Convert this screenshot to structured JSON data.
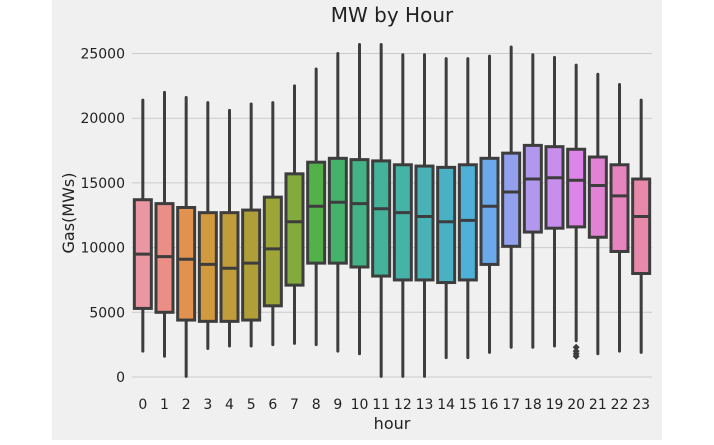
{
  "chart_data": {
    "type": "boxplot",
    "title": "MW by Hour",
    "xlabel": "hour",
    "ylabel": "Gas(MWs)",
    "ylim": [
      -900,
      26600
    ],
    "y_ticks": [
      0,
      5000,
      10000,
      15000,
      20000,
      25000
    ],
    "grid": true,
    "categories": [
      "0",
      "1",
      "2",
      "3",
      "4",
      "5",
      "6",
      "7",
      "8",
      "9",
      "10",
      "11",
      "12",
      "13",
      "14",
      "15",
      "16",
      "17",
      "18",
      "19",
      "20",
      "21",
      "22",
      "23"
    ],
    "boxes": [
      {
        "hour": "0",
        "whisker_low": 2000,
        "q1": 5300,
        "median": 9500,
        "q3": 13700,
        "whisker_high": 21400,
        "color": "#ea96a3"
      },
      {
        "hour": "1",
        "whisker_low": 1600,
        "q1": 5000,
        "median": 9300,
        "q3": 13400,
        "whisker_high": 22000,
        "color": "#eb8e86"
      },
      {
        "hour": "2",
        "whisker_low": 50,
        "q1": 4400,
        "median": 9100,
        "q3": 13100,
        "whisker_high": 21600,
        "color": "#e1924e"
      },
      {
        "hour": "3",
        "whisker_low": 2200,
        "q1": 4300,
        "median": 8700,
        "q3": 12700,
        "whisker_high": 21200,
        "color": "#d19a3f"
      },
      {
        "hour": "4",
        "whisker_low": 2400,
        "q1": 4300,
        "median": 8400,
        "q3": 12700,
        "whisker_high": 20600,
        "color": "#c09c3a"
      },
      {
        "hour": "5",
        "whisker_low": 2400,
        "q1": 4400,
        "median": 8800,
        "q3": 12900,
        "whisker_high": 21100,
        "color": "#b09f38"
      },
      {
        "hour": "6",
        "whisker_low": 2500,
        "q1": 5500,
        "median": 9900,
        "q3": 13900,
        "whisker_high": 21200,
        "color": "#9ea537"
      },
      {
        "hour": "7",
        "whisker_low": 2600,
        "q1": 7100,
        "median": 12000,
        "q3": 15700,
        "whisker_high": 22500,
        "color": "#83aa3c"
      },
      {
        "hour": "8",
        "whisker_low": 2500,
        "q1": 8800,
        "median": 13200,
        "q3": 16600,
        "whisker_high": 23800,
        "color": "#53b14a"
      },
      {
        "hour": "9",
        "whisker_low": 2000,
        "q1": 8800,
        "median": 13500,
        "q3": 16900,
        "whisker_high": 25000,
        "color": "#45b26c"
      },
      {
        "hour": "10",
        "whisker_low": 1800,
        "q1": 8500,
        "median": 13400,
        "q3": 16800,
        "whisker_high": 25700,
        "color": "#43b387"
      },
      {
        "hour": "11",
        "whisker_low": 50,
        "q1": 7800,
        "median": 13000,
        "q3": 16700,
        "whisker_high": 25700,
        "color": "#44b399"
      },
      {
        "hour": "12",
        "whisker_low": 50,
        "q1": 7500,
        "median": 12700,
        "q3": 16400,
        "whisker_high": 24900,
        "color": "#46b3a8"
      },
      {
        "hour": "13",
        "whisker_low": 50,
        "q1": 7500,
        "median": 12400,
        "q3": 16300,
        "whisker_high": 24900,
        "color": "#48b2b6"
      },
      {
        "hour": "14",
        "whisker_low": 1500,
        "q1": 7300,
        "median": 12000,
        "q3": 16200,
        "whisker_high": 24600,
        "color": "#4ab1c5"
      },
      {
        "hour": "15",
        "whisker_low": 1500,
        "q1": 7500,
        "median": 12100,
        "q3": 16400,
        "whisker_high": 24600,
        "color": "#4fb0d8"
      },
      {
        "hour": "16",
        "whisker_low": 1900,
        "q1": 8700,
        "median": 13200,
        "q3": 16900,
        "whisker_high": 24800,
        "color": "#6aa9ea"
      },
      {
        "hour": "17",
        "whisker_low": 2300,
        "q1": 10100,
        "median": 14300,
        "q3": 17300,
        "whisker_high": 25500,
        "color": "#92a0ee"
      },
      {
        "hour": "18",
        "whisker_low": 2300,
        "q1": 11200,
        "median": 15300,
        "q3": 17900,
        "whisker_high": 24900,
        "color": "#b297ee"
      },
      {
        "hour": "19",
        "whisker_low": 2400,
        "q1": 11500,
        "median": 15400,
        "q3": 17800,
        "whisker_high": 24700,
        "color": "#c88eec"
      },
      {
        "hour": "20",
        "whisker_low": 2800,
        "q1": 11600,
        "median": 15200,
        "q3": 17600,
        "whisker_high": 24100,
        "color": "#dc84e7",
        "outliers": [
          2300,
          2000,
          1800,
          1600
        ]
      },
      {
        "hour": "21",
        "whisker_low": 1800,
        "q1": 10800,
        "median": 14800,
        "q3": 17000,
        "whisker_high": 23400,
        "color": "#e282d4"
      },
      {
        "hour": "22",
        "whisker_low": 2000,
        "q1": 9700,
        "median": 14000,
        "q3": 16400,
        "whisker_high": 22600,
        "color": "#e584bf"
      },
      {
        "hour": "23",
        "whisker_low": 1900,
        "q1": 8000,
        "median": 12400,
        "q3": 15300,
        "whisker_high": 21400,
        "color": "#e889ab"
      }
    ]
  }
}
